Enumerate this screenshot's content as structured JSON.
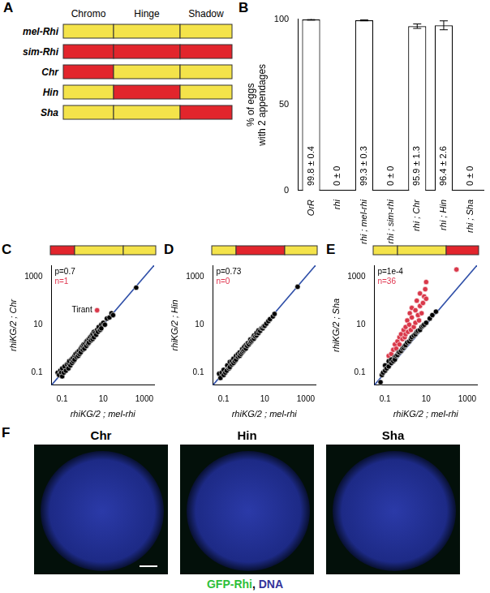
{
  "panel_labels": [
    "A",
    "B",
    "C",
    "D",
    "E",
    "F"
  ],
  "domain_diagram": {
    "headers": [
      "Chromo",
      "Hinge",
      "Shadow"
    ],
    "rows": [
      {
        "label": "mel-Rhi",
        "colors": [
          "#f4e34a",
          "#f4e34a",
          "#f4e34a"
        ]
      },
      {
        "label": "sim-Rhi",
        "colors": [
          "#e2252c",
          "#e2252c",
          "#e2252c"
        ]
      },
      {
        "label": "Chr",
        "colors": [
          "#e2252c",
          "#f4e34a",
          "#f4e34a"
        ]
      },
      {
        "label": "Hin",
        "colors": [
          "#f4e34a",
          "#e2252c",
          "#f4e34a"
        ]
      },
      {
        "label": "Sha",
        "colors": [
          "#f4e34a",
          "#f4e34a",
          "#e2252c"
        ]
      }
    ]
  },
  "chart_data": [
    {
      "type": "bar",
      "categories": [
        "OrR",
        "rhi",
        "rhi ; mel-rhi",
        "rhi ; sim-rhi",
        "rhi ; Chr",
        "rhi ; Hin",
        "rhi ; Sha"
      ],
      "values": [
        99.8,
        0,
        99.3,
        0,
        95.9,
        96.4,
        0
      ],
      "errors": [
        0.4,
        0,
        0.3,
        0,
        1.3,
        2.6,
        0
      ],
      "value_labels": [
        "99.8 ± 0.4",
        "0 ± 0",
        "99.3 ± 0.3",
        "0 ± 0",
        "95.9 ± 1.3",
        "96.4 ± 2.6",
        "0 ± 0"
      ],
      "data_labels": true,
      "y_label": [
        "% of eggs",
        "with 2 appendages"
      ],
      "ylim": [
        0,
        100
      ],
      "yticks": [
        0,
        50,
        100
      ],
      "color": "#ffffff",
      "grid": false
    },
    {
      "type": "scatter",
      "log": true,
      "grid": false,
      "domains": [
        "#e2252c",
        "#f4e34a",
        "#f4e34a"
      ],
      "x_label": "rhiKG/2 ; mel-rhi",
      "y_label": "rhiKG/2 ; Chr",
      "xlim": [
        0.03,
        3000
      ],
      "ylim": [
        0.03,
        3000
      ],
      "xticks": [
        0.1,
        10,
        1000
      ],
      "yticks": [
        0.1,
        10,
        1000
      ],
      "annotations": [
        {
          "text": "p=0.7",
          "color": "#000000"
        },
        {
          "text": "n=1",
          "color": "#e0334d"
        }
      ],
      "point_labels": [
        {
          "text": "Tirant",
          "x": 5,
          "y": 40
        }
      ],
      "series": [
        {
          "type": "line",
          "color": "#2f4fa8",
          "line_style": "solid",
          "x": [
            0.03,
            3000
          ],
          "values": [
            0.03,
            3000
          ]
        },
        {
          "type": "scatter",
          "color": "#000000",
          "marker": "circle",
          "x": [
            0.06,
            0.07,
            0.08,
            0.09,
            0.1,
            0.1,
            0.12,
            0.13,
            0.15,
            0.17,
            0.2,
            0.2,
            0.22,
            0.25,
            0.28,
            0.3,
            0.33,
            0.35,
            0.4,
            0.4,
            0.45,
            0.5,
            0.55,
            0.6,
            0.65,
            0.7,
            0.8,
            0.8,
            0.9,
            1,
            1,
            1.1,
            1.2,
            1.3,
            1.5,
            1.5,
            1.7,
            1.8,
            2,
            2,
            2.3,
            2.5,
            2.7,
            3,
            3,
            3.5,
            3.5,
            4,
            4.5,
            5,
            5.5,
            6,
            7,
            8,
            8,
            10,
            12,
            15,
            20,
            25,
            30,
            400
          ],
          "values": [
            0.1,
            0.08,
            0.12,
            0.1,
            0.07,
            0.15,
            0.1,
            0.18,
            0.12,
            0.22,
            0.15,
            0.25,
            0.3,
            0.2,
            0.35,
            0.25,
            0.4,
            0.3,
            0.5,
            0.35,
            0.6,
            0.45,
            0.7,
            0.5,
            0.8,
            0.6,
            1,
            0.7,
            1.2,
            0.9,
            1.3,
            1.5,
            1,
            1.6,
            1.3,
            2,
            2.2,
            1.6,
            2.5,
            1.8,
            3,
            2.2,
            3.5,
            2.5,
            4,
            3,
            5,
            4.5,
            3.8,
            6,
            5,
            8,
            6,
            10,
            7,
            12,
            10,
            18,
            20,
            30,
            25,
            350
          ]
        },
        {
          "type": "scatter",
          "color": "#d9384a",
          "marker": "circle",
          "x": [
            5
          ],
          "values": [
            40
          ]
        }
      ]
    },
    {
      "type": "scatter",
      "log": true,
      "grid": false,
      "domains": [
        "#f4e34a",
        "#e2252c",
        "#f4e34a"
      ],
      "x_label": "rhiKG/2 ; mel-rhi",
      "y_label": "rhiKG/2 ; Hin",
      "xlim": [
        0.03,
        3000
      ],
      "ylim": [
        0.03,
        3000
      ],
      "xticks": [
        0.1,
        10,
        1000
      ],
      "yticks": [
        0.1,
        10,
        1000
      ],
      "annotations": [
        {
          "text": "p=0.73",
          "color": "#000000"
        },
        {
          "text": "n=0",
          "color": "#e0334d"
        }
      ],
      "series": [
        {
          "type": "line",
          "color": "#2f4fa8",
          "line_style": "solid",
          "x": [
            0.03,
            3000
          ],
          "values": [
            0.03,
            3000
          ]
        },
        {
          "type": "scatter",
          "color": "#000000",
          "marker": "circle",
          "x": [
            0.06,
            0.07,
            0.08,
            0.1,
            0.1,
            0.12,
            0.14,
            0.15,
            0.18,
            0.2,
            0.2,
            0.25,
            0.25,
            0.3,
            0.3,
            0.35,
            0.4,
            0.4,
            0.5,
            0.5,
            0.6,
            0.6,
            0.7,
            0.8,
            0.8,
            0.9,
            1,
            1,
            1.2,
            1.2,
            1.4,
            1.5,
            1.7,
            2,
            2,
            2.2,
            2.5,
            2.8,
            3,
            3,
            3.5,
            4,
            4,
            5,
            5,
            6,
            7,
            8,
            9,
            10,
            12,
            15,
            18,
            25,
            30,
            400
          ],
          "values": [
            0.09,
            0.06,
            0.1,
            0.08,
            0.13,
            0.1,
            0.12,
            0.2,
            0.15,
            0.17,
            0.28,
            0.22,
            0.3,
            0.25,
            0.38,
            0.3,
            0.35,
            0.5,
            0.45,
            0.6,
            0.5,
            0.7,
            0.6,
            0.7,
            0.95,
            0.8,
            0.9,
            1.2,
            1,
            1.4,
            1.3,
            1.7,
            1.5,
            1.8,
            2.4,
            2,
            2.3,
            3,
            2.6,
            3.5,
            3.2,
            3.6,
            4.5,
            4.5,
            5.8,
            5.5,
            7,
            7,
            8.5,
            9,
            11,
            14,
            17,
            22,
            28,
            380
          ]
        }
      ]
    },
    {
      "type": "scatter",
      "log": true,
      "grid": false,
      "domains": [
        "#f4e34a",
        "#f4e34a",
        "#e2252c"
      ],
      "x_label": "rhiKG/2 ; mel-rhi",
      "y_label": "rhiKG/2 ; Sha",
      "xlim": [
        0.03,
        3000
      ],
      "ylim": [
        0.03,
        3000
      ],
      "xticks": [
        0.1,
        10,
        1000
      ],
      "yticks": [
        0.1,
        10,
        1000
      ],
      "annotations": [
        {
          "text": "p=1e-4",
          "color": "#000000"
        },
        {
          "text": "n=36",
          "color": "#e0334d"
        }
      ],
      "series": [
        {
          "type": "line",
          "color": "#2f4fa8",
          "line_style": "solid",
          "x": [
            0.03,
            3000
          ],
          "values": [
            0.03,
            3000
          ]
        },
        {
          "type": "scatter",
          "color": "#000000",
          "marker": "circle",
          "x": [
            0.06,
            0.07,
            0.08,
            0.1,
            0.1,
            0.12,
            0.15,
            0.15,
            0.2,
            0.2,
            0.25,
            0.3,
            0.3,
            0.35,
            0.4,
            0.45,
            0.5,
            0.6,
            0.7,
            0.8,
            0.9,
            1,
            1.2,
            1.5,
            1.8,
            2,
            2.5,
            3,
            3.5,
            4,
            5,
            6,
            7,
            8,
            10,
            15,
            20,
            30
          ],
          "values": [
            0.04,
            0.08,
            0.1,
            0.12,
            0.2,
            0.15,
            0.18,
            0.3,
            0.25,
            0.35,
            0.3,
            0.45,
            0.35,
            0.5,
            0.55,
            0.7,
            0.7,
            0.8,
            1,
            1.1,
            1.3,
            1.4,
            1.8,
            2,
            2.5,
            3,
            3.5,
            4,
            5,
            5.5,
            6,
            8,
            9,
            10,
            12,
            18,
            25,
            35
          ]
        },
        {
          "type": "scatter",
          "color": "#d9384a",
          "marker": "circle",
          "x": [
            0.15,
            0.2,
            0.25,
            0.3,
            0.35,
            0.4,
            0.5,
            0.5,
            0.6,
            0.7,
            0.8,
            0.9,
            1,
            1,
            1.2,
            1.3,
            1.5,
            1.6,
            1.8,
            2,
            2,
            2.5,
            3,
            3,
            3.5,
            4,
            4.5,
            5,
            5,
            6,
            7,
            8,
            9,
            10,
            10,
            300
          ],
          "values": [
            0.5,
            0.6,
            0.9,
            1.5,
            1,
            2,
            3,
            1.5,
            4,
            2.5,
            6,
            3,
            8,
            4,
            15,
            5,
            10,
            30,
            6,
            20,
            50,
            8,
            40,
            12,
            100,
            25,
            15,
            60,
            200,
            30,
            80,
            150,
            300,
            120,
            600,
            2000
          ]
        }
      ]
    }
  ],
  "micrographs": {
    "panels": [
      "Chr",
      "Hin",
      "Sha"
    ],
    "stains": [
      {
        "text": "GFP-Rhi",
        "color": "#2fbf3a"
      },
      {
        "text": "DNA",
        "color": "#33339a"
      }
    ],
    "separator": ", "
  }
}
